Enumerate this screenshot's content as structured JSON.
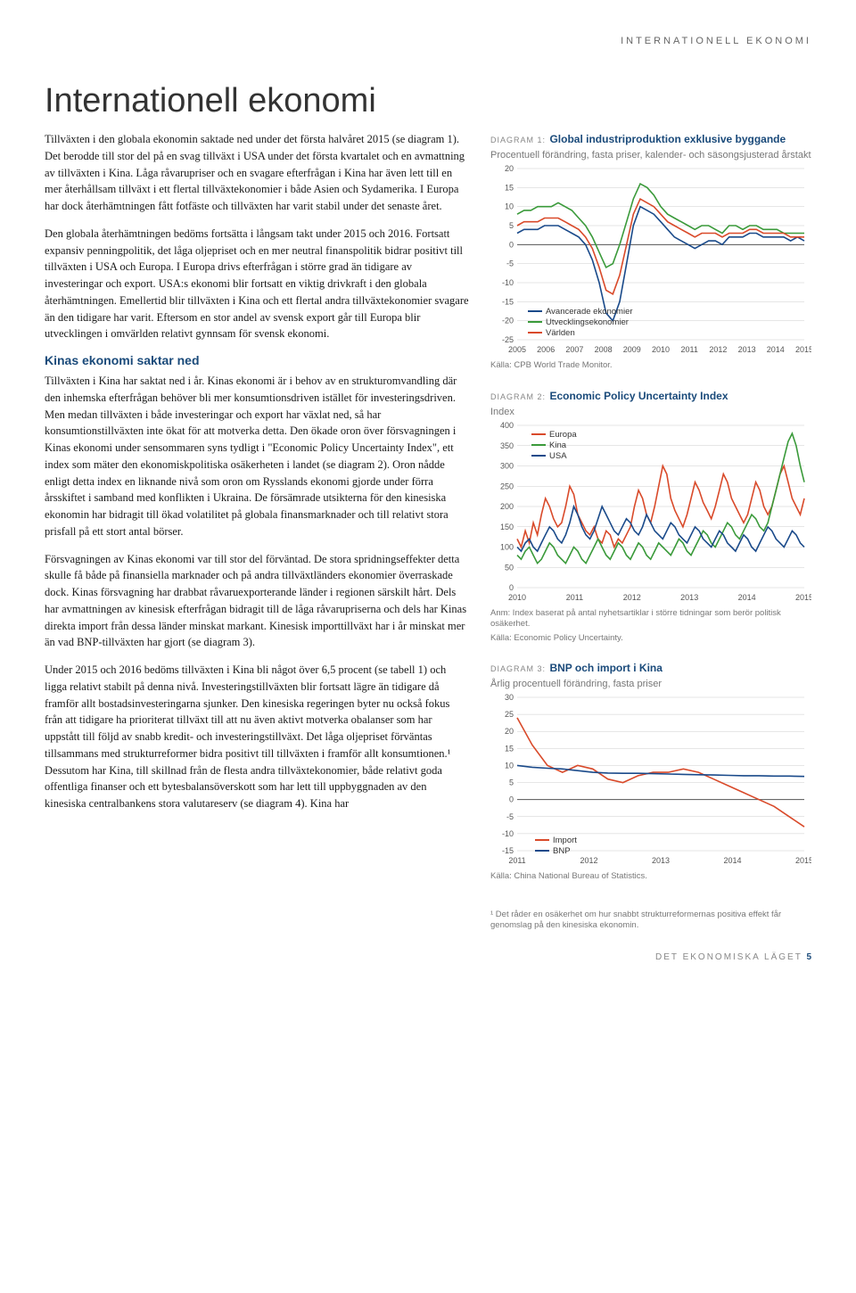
{
  "header_section": "INTERNATIONELL EKONOMI",
  "title": "Internationell ekonomi",
  "paragraphs": {
    "p1": "Tillväxten i den globala ekonomin saktade ned under det första halvåret 2015 (se diagram 1). Det berodde till stor del på en svag tillväxt i USA under det första kvartalet och en avmattning av tillväxten i Kina. Låga råvarupriser och en svagare efterfrågan i Kina har även lett till en mer återhållsam tillväxt i ett flertal tillväxtekonomier i både Asien och Sydamerika. I Europa har dock återhämtningen fått fotfäste och tillväxten har varit stabil under det senaste året.",
    "p2": "Den globala återhämtningen bedöms fortsätta i långsam takt under 2015 och 2016. Fortsatt expansiv penningpolitik, det låga oljepriset och en mer neutral finanspolitik bidrar positivt till tillväxten i USA och Europa. I Europa drivs efterfrågan i större grad än tidigare av investeringar och export. USA:s ekonomi blir fortsatt en viktig drivkraft i den globala återhämtningen. Emellertid blir tillväxten i Kina och ett flertal andra tillväxtekonomier svagare än den tidigare har varit. Eftersom en stor andel av svensk export går till Europa blir utvecklingen i omvärlden relativt gynnsam för svensk ekonomi.",
    "subhead1": "Kinas ekonomi saktar ned",
    "p3": "Tillväxten i Kina har saktat ned i år. Kinas ekonomi är i behov av en strukturomvandling där den inhemska efterfrågan behöver bli mer konsumtionsdriven istället för investeringsdriven. Men medan tillväxten i både investeringar och export har växlat ned, så har konsumtionstillväxten inte ökat för att motverka detta. Den ökade oron över försvagningen i Kinas ekonomi under sensommaren syns tydligt i \"Economic Policy Uncertainty Index\", ett index som mäter den ekonomiskpolitiska osäkerheten i landet (se diagram 2). Oron nådde enligt detta index en liknande nivå som oron om Rysslands ekonomi gjorde under förra årsskiftet i samband med konflikten i Ukraina. De försämrade utsikterna för den kinesiska ekonomin har bidragit till ökad volatilitet på globala finansmarknader och till relativt stora prisfall på ett stort antal börser.",
    "p4": "Försvagningen av Kinas ekonomi var till stor del förväntad. De stora spridningseffekter detta skulle få både på finansiella marknader och på andra tillväxtländers ekonomier överraskade dock. Kinas försvagning har drabbat råvaruexporterande länder i regionen särskilt hårt. Dels har avmattningen av kinesisk efterfrågan bidragit till de låga råvarupriserna och dels har Kinas direkta import från dessa länder minskat markant. Kinesisk importtillväxt har i år minskat mer än vad BNP-tillväxten har gjort (se diagram 3).",
    "p5": "Under 2015 och 2016 bedöms tillväxten i Kina bli något över 6,5 procent (se tabell 1) och ligga relativt stabilt på denna nivå. Investeringstillväxten blir fortsatt lägre än tidigare då framför allt bostadsinvesteringarna sjunker. Den kinesiska regeringen byter nu också fokus från att tidigare ha prioriterat tillväxt till att nu även aktivt motverka obalanser som har uppstått till följd av snabb kredit- och investeringstillväxt. Det låga oljepriset förväntas tillsammans med strukturreformer bidra positivt till tillväxten i framför allt konsumtionen.¹ Dessutom har Kina, till skillnad från de flesta andra tillväxtekonomier, både relativt goda offentliga finanser och ett bytesbalansöverskott som har lett till uppbyggnaden av den kinesiska centralbankens stora valutareserv (se diagram 4). Kina har"
  },
  "chart1": {
    "label": "DIAGRAM 1:",
    "title": "Global industriproduktion exklusive byggande",
    "subtitle": "Procentuell förändring, fasta priser, kalender- och säsongsjusterad årstakt",
    "ylim": [
      -25,
      20
    ],
    "ytick_step": 5,
    "x_labels": [
      "2005",
      "2006",
      "2007",
      "2008",
      "2009",
      "2010",
      "2011",
      "2012",
      "2013",
      "2014",
      "2015"
    ],
    "legend": [
      {
        "label": "Avancerade ekonomier",
        "color": "#1a4a8a"
      },
      {
        "label": "Utvecklingsekonomier",
        "color": "#3a9a3a"
      },
      {
        "label": "Världen",
        "color": "#d94a2a"
      }
    ],
    "source": "Källa: CPB World Trade Monitor.",
    "series": {
      "adv": [
        3,
        4,
        4,
        4,
        5,
        5,
        5,
        4,
        3,
        2,
        0,
        -4,
        -10,
        -18,
        -20,
        -15,
        -5,
        5,
        10,
        9,
        8,
        6,
        4,
        2,
        1,
        0,
        -1,
        0,
        1,
        1,
        0,
        2,
        2,
        2,
        3,
        3,
        2,
        2,
        2,
        2,
        1,
        2,
        1
      ],
      "dev": [
        8,
        9,
        9,
        10,
        10,
        10,
        11,
        10,
        9,
        7,
        5,
        2,
        -2,
        -6,
        -5,
        0,
        6,
        12,
        16,
        15,
        13,
        10,
        8,
        7,
        6,
        5,
        4,
        5,
        5,
        4,
        3,
        5,
        5,
        4,
        5,
        5,
        4,
        4,
        4,
        3,
        3,
        3,
        3
      ],
      "world": [
        5,
        6,
        6,
        6,
        7,
        7,
        7,
        6,
        5,
        4,
        2,
        -1,
        -6,
        -12,
        -13,
        -8,
        0,
        8,
        12,
        11,
        10,
        8,
        6,
        5,
        4,
        3,
        2,
        3,
        3,
        3,
        2,
        3,
        3,
        3,
        4,
        4,
        3,
        3,
        3,
        3,
        2,
        2,
        2
      ]
    }
  },
  "chart2": {
    "label": "DIAGRAM 2:",
    "title": "Economic Policy Uncertainty Index",
    "subtitle": "Index",
    "ylim": [
      0,
      400
    ],
    "ytick_step": 50,
    "x_labels": [
      "2010",
      "2011",
      "2012",
      "2013",
      "2014",
      "2015"
    ],
    "legend": [
      {
        "label": "Europa",
        "color": "#d94a2a"
      },
      {
        "label": "Kina",
        "color": "#3a9a3a"
      },
      {
        "label": "USA",
        "color": "#1a4a8a"
      }
    ],
    "note": "Anm: Index baserat på antal nyhetsartiklar i större tidningar som berör politisk osäkerhet.",
    "source": "Källa: Economic Policy Uncertainty.",
    "series": {
      "europa": [
        120,
        100,
        140,
        110,
        160,
        130,
        180,
        220,
        200,
        170,
        150,
        160,
        200,
        250,
        230,
        180,
        160,
        140,
        130,
        150,
        120,
        110,
        140,
        130,
        100,
        120,
        110,
        130,
        150,
        200,
        240,
        220,
        180,
        160,
        200,
        250,
        300,
        280,
        220,
        190,
        170,
        150,
        180,
        220,
        260,
        240,
        210,
        190,
        170,
        200,
        240,
        280,
        260,
        220,
        200,
        180,
        160,
        180,
        220,
        260,
        240,
        200,
        180,
        200,
        240,
        280,
        300,
        260,
        220,
        200,
        180,
        220
      ],
      "kina": [
        80,
        70,
        90,
        100,
        80,
        60,
        70,
        90,
        110,
        100,
        80,
        70,
        60,
        80,
        100,
        90,
        70,
        60,
        80,
        100,
        120,
        100,
        80,
        70,
        90,
        110,
        100,
        80,
        70,
        90,
        110,
        100,
        80,
        70,
        90,
        110,
        100,
        90,
        80,
        100,
        120,
        110,
        90,
        80,
        100,
        120,
        140,
        130,
        110,
        100,
        120,
        140,
        160,
        150,
        130,
        120,
        140,
        160,
        180,
        170,
        150,
        140,
        160,
        200,
        240,
        280,
        320,
        360,
        380,
        350,
        300,
        260
      ],
      "usa": [
        100,
        90,
        110,
        120,
        100,
        90,
        110,
        130,
        150,
        140,
        120,
        110,
        130,
        160,
        200,
        180,
        150,
        130,
        120,
        140,
        170,
        200,
        180,
        160,
        140,
        130,
        150,
        170,
        160,
        140,
        130,
        150,
        180,
        160,
        140,
        130,
        120,
        140,
        160,
        150,
        130,
        120,
        110,
        130,
        150,
        140,
        120,
        110,
        100,
        120,
        140,
        130,
        110,
        100,
        90,
        110,
        130,
        120,
        100,
        90,
        110,
        130,
        150,
        140,
        120,
        110,
        100,
        120,
        140,
        130,
        110,
        100
      ]
    }
  },
  "chart3": {
    "label": "DIAGRAM 3:",
    "title": "BNP och import i Kina",
    "subtitle": "Årlig procentuell förändring, fasta priser",
    "ylim": [
      -15,
      30
    ],
    "ytick_step": 5,
    "x_labels": [
      "2011",
      "2012",
      "2013",
      "2014",
      "2015"
    ],
    "legend": [
      {
        "label": "Import",
        "color": "#d94a2a"
      },
      {
        "label": "BNP",
        "color": "#1a4a8a"
      }
    ],
    "source": "Källa: China National Bureau of Statistics.",
    "series": {
      "import": [
        24,
        16,
        10,
        8,
        10,
        9,
        6,
        5,
        7,
        8,
        8,
        9,
        8,
        6,
        4,
        2,
        0,
        -2,
        -5,
        -8
      ],
      "bnp": [
        10,
        9.5,
        9.2,
        9,
        8.5,
        8,
        7.8,
        7.7,
        7.7,
        7.6,
        7.5,
        7.4,
        7.3,
        7.2,
        7.1,
        7,
        7,
        6.9,
        6.9,
        6.8
      ]
    }
  },
  "footnote": "¹ Det råder en osäkerhet om hur snabbt strukturreformernas positiva effekt får genomslag på den kinesiska ekonomin.",
  "footer": {
    "text": "DET EKONOMISKA LÄGET",
    "page": "5"
  }
}
